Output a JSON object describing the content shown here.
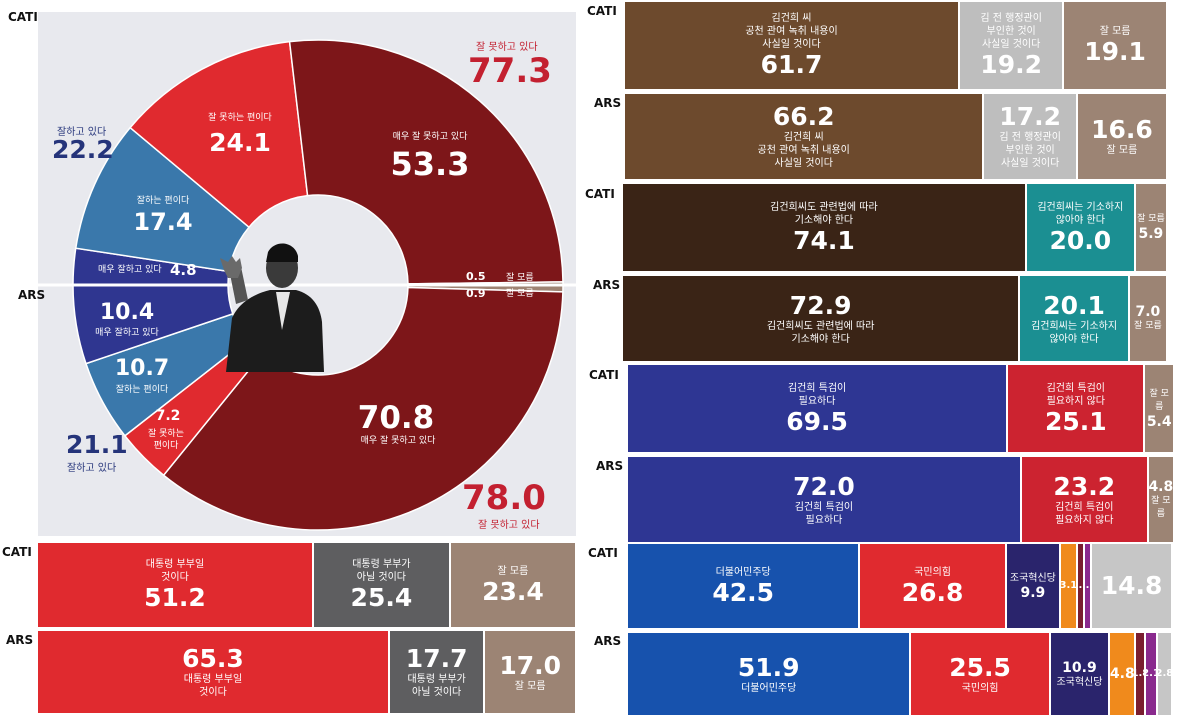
{
  "labels": {
    "cati": "CATI",
    "ars": "ARS"
  },
  "chart_data": [
    {
      "type": "pie",
      "sub_type": "donut",
      "series": [
        {
          "name": "CATI",
          "values": [
            {
              "label": "매우 잘 못하고 있다",
              "value": 53.3,
              "color": "#7d1619"
            },
            {
              "label": "잘 못하는 편이다",
              "value": 24.1,
              "color": "#e02a2f"
            },
            {
              "label": "잘하는 편이다",
              "value": 17.4,
              "color": "#3a78ab"
            },
            {
              "label": "매우 잘하고 있다",
              "value": 4.8,
              "color": "#2f3690"
            },
            {
              "label": "잘 모름",
              "value": 0.5,
              "color": "#9e8373"
            }
          ]
        },
        {
          "name": "ARS",
          "values": [
            {
              "label": "매우 잘 못하고 있다",
              "value": 70.8,
              "color": "#7d1619"
            },
            {
              "label": "잘 못하는 편이다",
              "value": 7.2,
              "color": "#e02a2f"
            },
            {
              "label": "잘하는 편이다",
              "value": 10.7,
              "color": "#3a78ab"
            },
            {
              "label": "매우 잘하고 있다",
              "value": 10.4,
              "color": "#2f3690"
            },
            {
              "label": "잘 모름",
              "value": 0.9,
              "color": "#9e8373"
            }
          ]
        }
      ],
      "totals": {
        "cati_negative": {
          "label": "잘 못하고 있다",
          "value": "77.3"
        },
        "cati_positive": {
          "label": "잘하고 있다",
          "value": "22.2"
        },
        "ars_negative": {
          "label": "잘 못하고 있다",
          "value": "78.0"
        },
        "ars_positive": {
          "label": "잘하고 있다",
          "value": "21.1"
        }
      }
    },
    {
      "type": "bar",
      "sub_type": "stacked-100",
      "rows": [
        {
          "name": "CATI",
          "segments": [
            {
              "label": "김건희 씨\n공천 관여 녹취 내용이\n사실일 것이다",
              "value": 61.7,
              "color": "#6d4a2d"
            },
            {
              "label": "김 전 행정관이\n부인한 것이\n사실일 것이다",
              "value": 19.2,
              "color": "#bebebe"
            },
            {
              "label": "잘 모름",
              "value": 19.1,
              "color": "#9c8474"
            }
          ]
        },
        {
          "name": "ARS",
          "segments": [
            {
              "label": "김건희 씨\n공천 관여 녹취 내용이\n사실일 것이다",
              "value": 66.2,
              "color": "#6d4a2d"
            },
            {
              "label": "김 전 행정관이\n부인한 것이\n사실일 것이다",
              "value": 17.2,
              "color": "#bebebe"
            },
            {
              "label": "잘 모름",
              "value": 16.6,
              "color": "#9c8474"
            }
          ]
        }
      ]
    },
    {
      "type": "bar",
      "sub_type": "stacked-100",
      "rows": [
        {
          "name": "CATI",
          "segments": [
            {
              "label": "김건희씨도 관련법에 따라\n기소해야 한다",
              "value": 74.1,
              "color": "#3a2416"
            },
            {
              "label": "김건희씨는 기소하지\n않아야 한다",
              "value": 20.0,
              "color": "#1b8f92"
            },
            {
              "label": "잘 모름",
              "value": 5.9,
              "color": "#9c8474"
            }
          ]
        },
        {
          "name": "ARS",
          "segments": [
            {
              "label": "김건희씨도 관련법에 따라\n기소해야 한다",
              "value": 72.9,
              "color": "#3a2416"
            },
            {
              "label": "김건희씨는 기소하지\n않아야 한다",
              "value": 20.1,
              "color": "#1b8f92"
            },
            {
              "label": "잘 모름",
              "value": 7.0,
              "color": "#9c8474"
            }
          ]
        }
      ]
    },
    {
      "type": "bar",
      "sub_type": "stacked-100",
      "rows": [
        {
          "name": "CATI",
          "segments": [
            {
              "label": "김건희 특검이\n필요하다",
              "value": 69.5,
              "color": "#2e3693"
            },
            {
              "label": "김건희 특검이\n필요하지 않다",
              "value": 25.1,
              "color": "#cc2330"
            },
            {
              "label": "잘 모름",
              "value": 5.4,
              "color": "#9c8474"
            }
          ]
        },
        {
          "name": "ARS",
          "segments": [
            {
              "label": "김건희 특검이\n필요하다",
              "value": 72.0,
              "color": "#2e3693"
            },
            {
              "label": "김건희 특검이\n필요하지 않다",
              "value": 23.2,
              "color": "#cc2330"
            },
            {
              "label": "잘 모름",
              "value": 4.8,
              "color": "#9c8474"
            }
          ]
        }
      ]
    },
    {
      "type": "bar",
      "sub_type": "stacked-100",
      "rows": [
        {
          "name": "CATI",
          "segments": [
            {
              "label": "대통령 부부일\n것이다",
              "value": 51.2,
              "color": "#e02a2f"
            },
            {
              "label": "대통령 부부가\n아닐 것이다",
              "value": 25.4,
              "color": "#5e5e60"
            },
            {
              "label": "잘 모름",
              "value": 23.4,
              "color": "#9c8474"
            }
          ]
        },
        {
          "name": "ARS",
          "segments": [
            {
              "label": "대통령 부부일\n것이다",
              "value": 65.3,
              "color": "#e02a2f"
            },
            {
              "label": "대통령 부부가\n아닐 것이다",
              "value": 17.7,
              "color": "#5e5e60"
            },
            {
              "label": "잘 모름",
              "value": 17.0,
              "color": "#9c8474"
            }
          ]
        }
      ]
    },
    {
      "type": "bar",
      "sub_type": "stacked-100",
      "rows": [
        {
          "name": "CATI",
          "segments": [
            {
              "label": "더불어민주당",
              "value": 42.5,
              "color": "#1752ad"
            },
            {
              "label": "국민의힘",
              "value": 26.8,
              "color": "#e02a2f"
            },
            {
              "label": "조국혁신당",
              "value": 9.9,
              "color": "#2a246c"
            },
            {
              "label": "",
              "value": 3.1,
              "color": "#f08a1c"
            },
            {
              "label": "",
              "value": 1.3,
              "color": "#7a1e30"
            },
            {
              "label": "",
              "value": 1.3,
              "color": "#8a2a8e"
            },
            {
              "label": "",
              "value": 14.8,
              "color": "#c6c6c6"
            },
            {
              "label": "",
              "value": 0.3,
              "color": "#e3e3e3"
            }
          ]
        },
        {
          "name": "ARS",
          "segments": [
            {
              "label": "더불어민주당",
              "value": 51.9,
              "color": "#1752ad"
            },
            {
              "label": "국민의힘",
              "value": 25.5,
              "color": "#e02a2f"
            },
            {
              "label": "조국혁신당",
              "value": 10.9,
              "color": "#2a246c"
            },
            {
              "label": "",
              "value": 4.8,
              "color": "#f08a1c"
            },
            {
              "label": "",
              "value": 1.8,
              "color": "#7a1e30"
            },
            {
              "label": "",
              "value": 2.1,
              "color": "#8a2a8e"
            },
            {
              "label": "",
              "value": 2.8,
              "color": "#c6c6c6"
            },
            {
              "label": "",
              "value": 0.1,
              "color": "#e3e3e3"
            }
          ]
        }
      ]
    }
  ]
}
